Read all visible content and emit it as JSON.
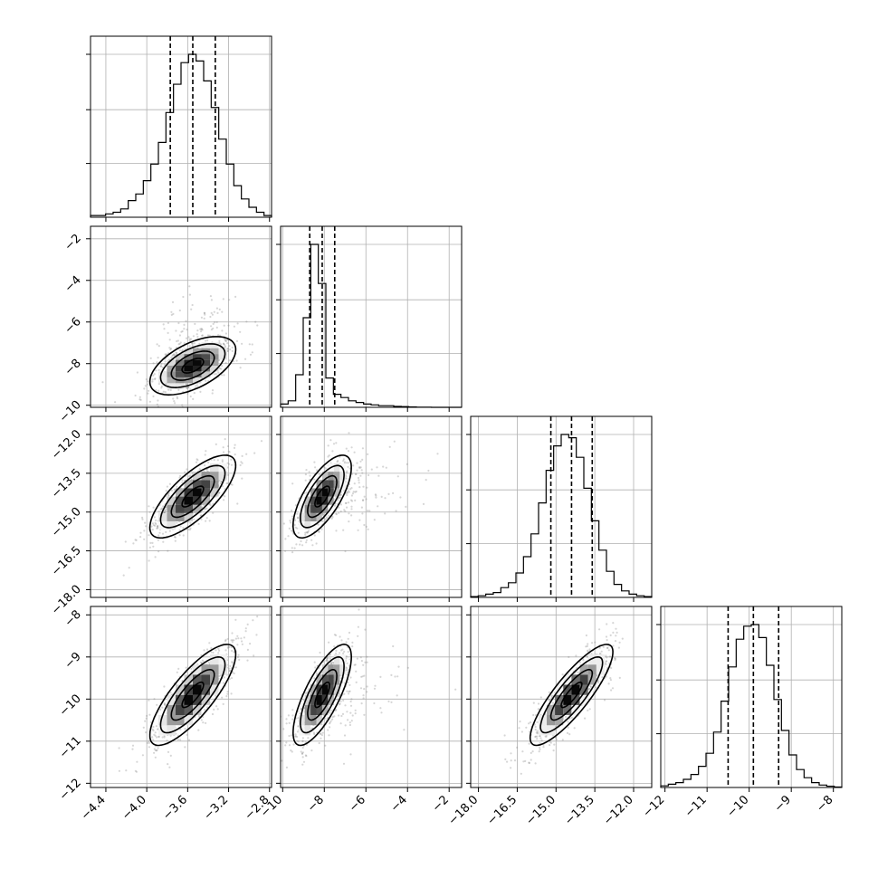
{
  "chart_data": {
    "type": "corner",
    "grid": true,
    "parameters": [
      {
        "index": 0,
        "mean": -3.55,
        "sigma": 0.21,
        "range": [
          -4.55,
          -2.78
        ],
        "ticks": [
          -4.4,
          -4.0,
          -3.6,
          -3.2,
          -2.8
        ],
        "tick_labels": [
          "−4.4",
          "−4.0",
          "−3.6",
          "−3.2",
          "−2.8"
        ],
        "quantiles": [
          -3.77,
          -3.55,
          -3.33
        ],
        "hist_counts": [
          1,
          1,
          2,
          3,
          5,
          10,
          14,
          22,
          32,
          45,
          63,
          80,
          93,
          98,
          94,
          82,
          66,
          47,
          32,
          19,
          11,
          6,
          3,
          1
        ]
      },
      {
        "index": 1,
        "mean": -8.1,
        "sigma": 0.7,
        "range": [
          -10.1,
          -1.4
        ],
        "ticks": [
          -10,
          -8,
          -6,
          -4,
          -2
        ],
        "tick_labels": [
          "−10",
          "−8",
          "−6",
          "−4",
          "−2"
        ],
        "quantiles": [
          -8.7,
          -8.1,
          -7.5
        ],
        "hist_counts": [
          2,
          4,
          20,
          55,
          100,
          76,
          18,
          8,
          6,
          4,
          3,
          2,
          1.5,
          1,
          1,
          0.6,
          0.4,
          0.2,
          0.1,
          0.05,
          0,
          0,
          0,
          0
        ]
      },
      {
        "index": 2,
        "mean": -14.4,
        "sigma": 0.8,
        "range": [
          -18.3,
          -11.3
        ],
        "ticks": [
          -18.0,
          -16.5,
          -15.0,
          -13.5,
          -12.0
        ],
        "tick_labels": [
          "−18.0",
          "−16.5",
          "−15.0",
          "−13.5",
          "−12.0"
        ],
        "quantiles": [
          -15.2,
          -14.4,
          -13.6
        ],
        "hist_counts": [
          0.5,
          1,
          2,
          3,
          6,
          9,
          15,
          25,
          39,
          58,
          78,
          93,
          100,
          98,
          86,
          67,
          47,
          29,
          16,
          8,
          4,
          2,
          1,
          0.5
        ]
      },
      {
        "index": 3,
        "mean": -9.9,
        "sigma": 0.6,
        "range": [
          -12.1,
          -7.8
        ],
        "ticks": [
          -12,
          -11,
          -10,
          -9,
          -8
        ],
        "tick_labels": [
          "−12",
          "−11",
          "−10",
          "−9",
          "−8"
        ],
        "quantiles": [
          -10.5,
          -9.9,
          -9.3
        ],
        "hist_counts": [
          1,
          2,
          3,
          5,
          8,
          13,
          21,
          34,
          53,
          74,
          91,
          99,
          100,
          92,
          75,
          54,
          35,
          20,
          11,
          6,
          3,
          1.5,
          0.8,
          0.3
        ]
      }
    ],
    "correlations": {
      "1-0": 0.55,
      "2-0": 0.75,
      "2-1": 0.7,
      "3-0": 0.8,
      "3-1": 0.75,
      "3-2": 0.85
    }
  }
}
